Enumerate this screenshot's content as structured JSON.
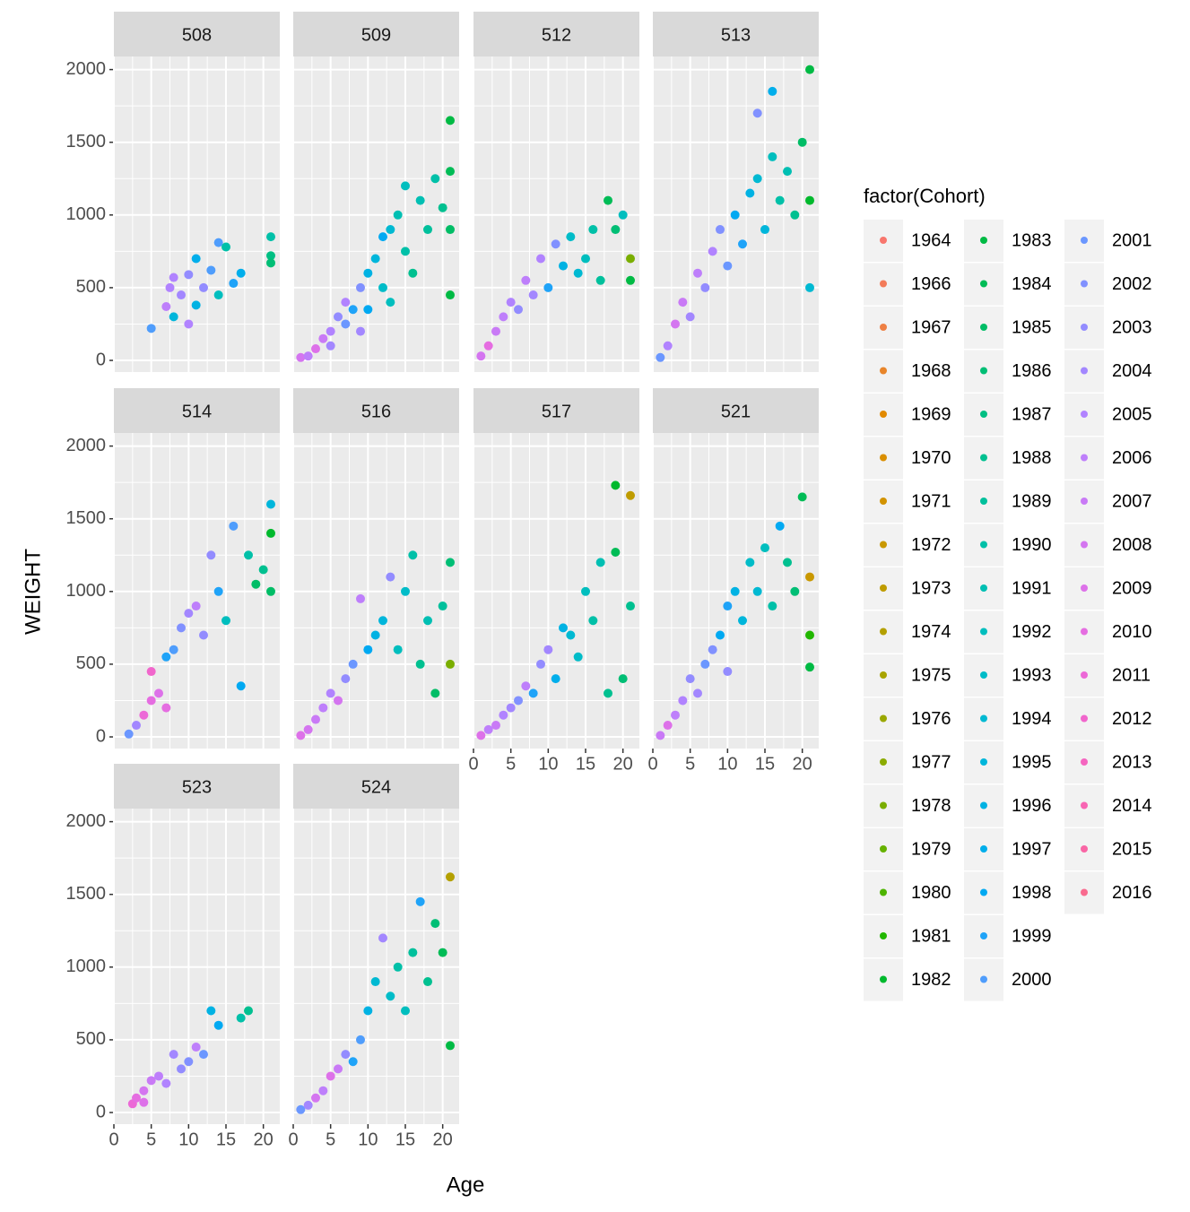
{
  "x_label": "Age",
  "y_label": "WEIGHT",
  "legend": {
    "title": "factor(Cohort)",
    "items": [
      {
        "name": "1964",
        "color": "#F8766D"
      },
      {
        "name": "1966",
        "color": "#F37B59"
      },
      {
        "name": "1967",
        "color": "#EE8044"
      },
      {
        "name": "1968",
        "color": "#E8852A"
      },
      {
        "name": "1969",
        "color": "#E28A00"
      },
      {
        "name": "1970",
        "color": "#DA8F00"
      },
      {
        "name": "1971",
        "color": "#D29300"
      },
      {
        "name": "1972",
        "color": "#C99800"
      },
      {
        "name": "1973",
        "color": "#BF9C00"
      },
      {
        "name": "1974",
        "color": "#B4A000"
      },
      {
        "name": "1975",
        "color": "#A8A400"
      },
      {
        "name": "1976",
        "color": "#9AA800"
      },
      {
        "name": "1977",
        "color": "#8BAB00"
      },
      {
        "name": "1978",
        "color": "#7AAE00"
      },
      {
        "name": "1979",
        "color": "#66B200"
      },
      {
        "name": "1980",
        "color": "#4DB400"
      },
      {
        "name": "1981",
        "color": "#22B700"
      },
      {
        "name": "1982",
        "color": "#00B92D"
      },
      {
        "name": "1983",
        "color": "#00BA44"
      },
      {
        "name": "1984",
        "color": "#00BC56"
      },
      {
        "name": "1985",
        "color": "#00BD66"
      },
      {
        "name": "1986",
        "color": "#00BE75"
      },
      {
        "name": "1987",
        "color": "#00BF83"
      },
      {
        "name": "1988",
        "color": "#00C090"
      },
      {
        "name": "1989",
        "color": "#00C09C"
      },
      {
        "name": "1990",
        "color": "#00C0A8"
      },
      {
        "name": "1991",
        "color": "#00BFB3"
      },
      {
        "name": "1992",
        "color": "#00BEBE"
      },
      {
        "name": "1993",
        "color": "#00BCC8"
      },
      {
        "name": "1994",
        "color": "#00B9D2"
      },
      {
        "name": "1995",
        "color": "#00B6DB"
      },
      {
        "name": "1996",
        "color": "#00B2E3"
      },
      {
        "name": "1997",
        "color": "#00AEEB"
      },
      {
        "name": "1998",
        "color": "#00A9F2"
      },
      {
        "name": "1999",
        "color": "#1FA3F8"
      },
      {
        "name": "2000",
        "color": "#4F9DFC"
      },
      {
        "name": "2001",
        "color": "#6B97FF"
      },
      {
        "name": "2002",
        "color": "#8191FF"
      },
      {
        "name": "2003",
        "color": "#938CFF"
      },
      {
        "name": "2004",
        "color": "#A387FF"
      },
      {
        "name": "2005",
        "color": "#B183FF"
      },
      {
        "name": "2006",
        "color": "#BE7FFB"
      },
      {
        "name": "2007",
        "color": "#C97AF6"
      },
      {
        "name": "2008",
        "color": "#D475F0"
      },
      {
        "name": "2009",
        "color": "#DD71E9"
      },
      {
        "name": "2010",
        "color": "#E56DE1"
      },
      {
        "name": "2011",
        "color": "#EC69D7"
      },
      {
        "name": "2012",
        "color": "#F166CC"
      },
      {
        "name": "2013",
        "color": "#F565C0"
      },
      {
        "name": "2014",
        "color": "#F865B3"
      },
      {
        "name": "2015",
        "color": "#F966A5"
      },
      {
        "name": "2016",
        "color": "#F96B8F"
      }
    ]
  },
  "chart_data": [
    {
      "type": "scatter",
      "title": "508",
      "xlim": [
        0,
        22.2
      ],
      "ylim": [
        -80,
        2090
      ],
      "xticks": [
        0,
        5,
        10,
        15,
        20
      ],
      "yticks": [
        0,
        500,
        1000,
        1500,
        2000
      ],
      "x": [
        5,
        7,
        7.5,
        8,
        8,
        9,
        10,
        10,
        11,
        11,
        12,
        13,
        14,
        14,
        15,
        16,
        17,
        21,
        21,
        21
      ],
      "values": [
        220,
        370,
        500,
        570,
        300,
        450,
        250,
        590,
        380,
        700,
        500,
        620,
        450,
        810,
        780,
        530,
        600,
        850,
        720,
        670
      ],
      "cohort": [
        "2000",
        "2006",
        "2005",
        "2005",
        "1995",
        "2004",
        "2005",
        "2003",
        "1996",
        "1997",
        "2003",
        "2000",
        "1992",
        "2000",
        "1990",
        "1999",
        "1997",
        "1990",
        "1987",
        "1986"
      ]
    },
    {
      "type": "scatter",
      "title": "509",
      "xlim": [
        0,
        22.2
      ],
      "ylim": [
        -80,
        2090
      ],
      "xticks": [
        0,
        5,
        10,
        15,
        20
      ],
      "yticks": [
        0,
        500,
        1000,
        1500,
        2000
      ],
      "x": [
        1,
        2,
        3,
        4,
        5,
        5,
        6,
        7,
        7,
        8,
        9,
        9,
        10,
        10,
        11,
        12,
        12,
        13,
        13,
        14,
        15,
        15,
        16,
        17,
        18,
        19,
        20,
        21,
        21,
        21,
        21
      ],
      "values": [
        20,
        30,
        80,
        150,
        200,
        100,
        300,
        250,
        400,
        350,
        500,
        200,
        600,
        350,
        700,
        500,
        850,
        900,
        400,
        1000,
        750,
        1200,
        600,
        1100,
        900,
        1250,
        1050,
        1650,
        1300,
        900,
        450
      ],
      "cohort": [
        "2008",
        "2006",
        "2009",
        "2007",
        "2005",
        "2004",
        "2003",
        "2001",
        "2005",
        "1999",
        "2002",
        "2004",
        "1996",
        "1998",
        "1995",
        "1993",
        "1998",
        "1994",
        "1992",
        "1991",
        "1990",
        "1992",
        "1988",
        "1991",
        "1989",
        "1990",
        "1988",
        "1983",
        "1984",
        "1985",
        "1983"
      ]
    },
    {
      "type": "scatter",
      "title": "512",
      "xlim": [
        0,
        22.2
      ],
      "ylim": [
        -80,
        2090
      ],
      "xticks": [
        0,
        5,
        10,
        15,
        20
      ],
      "yticks": [
        0,
        500,
        1000,
        1500,
        2000
      ],
      "x": [
        1,
        2,
        3,
        4,
        5,
        6,
        7,
        8,
        9,
        10,
        11,
        12,
        13,
        14,
        15,
        16,
        17,
        18,
        19,
        20,
        21,
        21
      ],
      "values": [
        30,
        100,
        200,
        300,
        400,
        350,
        550,
        450,
        700,
        500,
        800,
        650,
        850,
        600,
        700,
        900,
        550,
        1100,
        900,
        1000,
        700,
        550
      ],
      "cohort": [
        "2008",
        "2010",
        "2007",
        "2006",
        "2005",
        "2003",
        "2006",
        "2004",
        "2005",
        "1999",
        "2002",
        "1996",
        "1993",
        "1994",
        "1992",
        "1990",
        "1989",
        "1984",
        "1986",
        "1992",
        "1978",
        "1983"
      ]
    },
    {
      "type": "scatter",
      "title": "513",
      "xlim": [
        0,
        22.2
      ],
      "ylim": [
        -80,
        2090
      ],
      "xticks": [
        0,
        5,
        10,
        15,
        20
      ],
      "yticks": [
        0,
        500,
        1000,
        1500,
        2000
      ],
      "x": [
        1,
        2,
        3,
        4,
        5,
        6,
        7,
        8,
        9,
        10,
        11,
        12,
        13,
        14,
        14,
        15,
        16,
        16,
        17,
        18,
        19,
        20,
        21,
        21,
        21
      ],
      "values": [
        20,
        100,
        250,
        400,
        300,
        600,
        500,
        750,
        900,
        650,
        1000,
        800,
        1150,
        1250,
        1700,
        900,
        1400,
        1850,
        1100,
        1300,
        1000,
        1500,
        2000,
        1100,
        500
      ],
      "cohort": [
        "2001",
        "2005",
        "2008",
        "2007",
        "2004",
        "2006",
        "2003",
        "2005",
        "2002",
        "2001",
        "1998",
        "1999",
        "1996",
        "1994",
        "2002",
        "1995",
        "1992",
        "1997",
        "1990",
        "1991",
        "1988",
        "1985",
        "1983",
        "1982",
        "1994"
      ]
    },
    {
      "type": "scatter",
      "title": "514",
      "xlim": [
        0,
        22.2
      ],
      "ylim": [
        -80,
        2090
      ],
      "xticks": [
        0,
        5,
        10,
        15,
        20
      ],
      "yticks": [
        0,
        500,
        1000,
        1500,
        2000
      ],
      "x": [
        2,
        3,
        4,
        5,
        5,
        6,
        7,
        7,
        8,
        9,
        10,
        11,
        12,
        13,
        14,
        15,
        16,
        17,
        18,
        19,
        20,
        21,
        21,
        21
      ],
      "values": [
        20,
        80,
        150,
        250,
        450,
        300,
        200,
        550,
        600,
        750,
        850,
        900,
        700,
        1250,
        1000,
        800,
        1450,
        350,
        1250,
        1050,
        1150,
        1600,
        1400,
        1000
      ],
      "cohort": [
        "2001",
        "2004",
        "2011",
        "2010",
        "2012",
        "2009",
        "2010",
        "1999",
        "2000",
        "2002",
        "2004",
        "2006",
        "2003",
        "2003",
        "1999",
        "1992",
        "2000",
        "1998",
        "1990",
        "1985",
        "1988",
        "1995",
        "1982",
        "1985"
      ]
    },
    {
      "type": "scatter",
      "title": "516",
      "xlim": [
        0,
        22.2
      ],
      "ylim": [
        -80,
        2090
      ],
      "xticks": [
        0,
        5,
        10,
        15,
        20
      ],
      "yticks": [
        0,
        500,
        1000,
        1500,
        2000
      ],
      "x": [
        1,
        2,
        3,
        4,
        5,
        6,
        7,
        8,
        9,
        10,
        11,
        12,
        13,
        14,
        15,
        16,
        17,
        18,
        19,
        20,
        21,
        21
      ],
      "values": [
        10,
        50,
        120,
        200,
        300,
        250,
        400,
        500,
        950,
        600,
        700,
        800,
        1100,
        600,
        1000,
        1250,
        500,
        800,
        300,
        900,
        1200,
        500
      ],
      "cohort": [
        "2009",
        "2008",
        "2007",
        "2006",
        "2005",
        "2008",
        "2003",
        "2001",
        "2006",
        "1998",
        "1996",
        "1995",
        "2003",
        "1992",
        "1993",
        "1990",
        "1988",
        "1991",
        "1985",
        "1989",
        "1986",
        "1978"
      ]
    },
    {
      "type": "scatter",
      "title": "517",
      "xlim": [
        0,
        22.2
      ],
      "ylim": [
        -80,
        2090
      ],
      "xticks": [
        0,
        5,
        10,
        15,
        20
      ],
      "yticks": [
        0,
        500,
        1000,
        1500,
        2000
      ],
      "x": [
        1,
        2,
        3,
        4,
        5,
        6,
        7,
        8,
        9,
        10,
        11,
        12,
        13,
        14,
        15,
        16,
        17,
        18,
        19,
        19,
        20,
        21,
        21
      ],
      "values": [
        10,
        50,
        80,
        150,
        200,
        250,
        350,
        300,
        500,
        600,
        400,
        750,
        700,
        550,
        1000,
        800,
        1200,
        300,
        1730,
        1270,
        400,
        1660,
        900
      ],
      "cohort": [
        "2009",
        "2006",
        "2007",
        "2005",
        "2004",
        "2002",
        "2006",
        "1999",
        "2003",
        "2004",
        "1997",
        "1996",
        "1994",
        "1993",
        "1992",
        "1990",
        "1991",
        "1988",
        "1982",
        "1984",
        "1986",
        "1973",
        "1988"
      ]
    },
    {
      "type": "scatter",
      "title": "521",
      "xlim": [
        0,
        22.2
      ],
      "ylim": [
        -80,
        2090
      ],
      "xticks": [
        0,
        5,
        10,
        15,
        20
      ],
      "yticks": [
        0,
        500,
        1000,
        1500,
        2000
      ],
      "x": [
        1,
        2,
        3,
        4,
        5,
        6,
        7,
        8,
        9,
        10,
        10,
        11,
        12,
        13,
        14,
        15,
        16,
        17,
        18,
        19,
        20,
        21,
        21,
        21
      ],
      "values": [
        10,
        80,
        150,
        250,
        400,
        300,
        500,
        600,
        700,
        900,
        450,
        1000,
        800,
        1200,
        1000,
        1300,
        900,
        1450,
        1200,
        1000,
        1650,
        1100,
        700,
        480
      ],
      "cohort": [
        "2007",
        "2009",
        "2006",
        "2005",
        "2003",
        "2004",
        "2001",
        "2002",
        "1998",
        "1999",
        "2003",
        "1996",
        "1995",
        "1993",
        "1994",
        "1992",
        "1990",
        "1998",
        "1988",
        "1986",
        "1984",
        "1972",
        "1981",
        "1983"
      ]
    },
    {
      "type": "scatter",
      "title": "523",
      "xlim": [
        0,
        22.2
      ],
      "ylim": [
        -80,
        2090
      ],
      "xticks": [
        0,
        5,
        10,
        15,
        20
      ],
      "yticks": [
        0,
        500,
        1000,
        1500,
        2000
      ],
      "x": [
        2.5,
        3,
        4,
        4,
        5,
        6,
        7,
        8,
        9,
        10,
        11,
        12,
        13,
        14,
        17,
        18
      ],
      "values": [
        60,
        100,
        70,
        150,
        220,
        250,
        200,
        400,
        300,
        350,
        450,
        400,
        700,
        600,
        650,
        700
      ],
      "cohort": [
        "2011",
        "2010",
        "2009",
        "2008",
        "2007",
        "2006",
        "2005",
        "2004",
        "2003",
        "2002",
        "2006",
        "2001",
        "1996",
        "1998",
        "1990",
        "1988"
      ]
    },
    {
      "type": "scatter",
      "title": "524",
      "xlim": [
        0,
        22.2
      ],
      "ylim": [
        -80,
        2090
      ],
      "xticks": [
        0,
        5,
        10,
        15,
        20
      ],
      "yticks": [
        0,
        500,
        1000,
        1500,
        2000
      ],
      "x": [
        1,
        2,
        3,
        4,
        5,
        6,
        7,
        8,
        9,
        10,
        11,
        12,
        13,
        14,
        15,
        16,
        17,
        18,
        19,
        20,
        21,
        21
      ],
      "values": [
        20,
        50,
        100,
        150,
        250,
        300,
        400,
        350,
        500,
        700,
        900,
        1200,
        800,
        1000,
        700,
        1100,
        1450,
        900,
        1300,
        1100,
        1620,
        460
      ],
      "cohort": [
        "2001",
        "2004",
        "2008",
        "2006",
        "2009",
        "2007",
        "2003",
        "1999",
        "2000",
        "1996",
        "1994",
        "2004",
        "1993",
        "1990",
        "1992",
        "1989",
        "1999",
        "1988",
        "1986",
        "1984",
        "1974",
        "1983"
      ]
    }
  ]
}
